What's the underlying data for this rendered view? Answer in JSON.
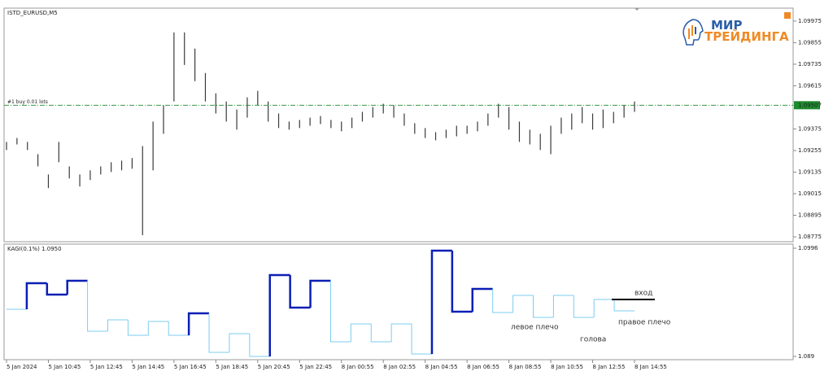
{
  "chart_data": [
    {
      "type": "ohlc",
      "title": "ISTD_EURUSD,M5",
      "categories": [
        "5 Jan 2024",
        null,
        null,
        null,
        "5 Jan 10:45",
        null,
        null,
        null,
        "5 Jan 12:45",
        null,
        null,
        null,
        "5 Jan 14:45",
        null,
        null,
        null,
        "5 Jan 16:45",
        null,
        null,
        null,
        "5 Jan 18:45",
        null,
        null,
        null,
        "5 Jan 20:45",
        null,
        null,
        null,
        "5 Jan 22:45",
        null,
        null,
        null,
        "8 Jan 00:55",
        null,
        null,
        null,
        "8 Jan 02:55",
        null,
        null,
        null,
        "8 Jan 04:55",
        null,
        null,
        null,
        "8 Jan 06:55",
        null,
        null,
        null,
        "8 Jan 08:55",
        null,
        null,
        null,
        "8 Jan 10:55",
        null,
        null,
        null,
        "8 Jan 12:55",
        null,
        null,
        null,
        "8 Jan 14:55"
      ],
      "high": [
        1.09303,
        1.09325,
        1.09303,
        1.09235,
        1.09122,
        1.09303,
        1.09167,
        1.09122,
        1.09145,
        1.09167,
        1.0919,
        1.09199,
        1.09213,
        1.0928,
        1.09416,
        1.09506,
        1.09912,
        1.09912,
        1.09822,
        1.09686,
        1.09573,
        1.09528,
        1.09483,
        1.09551,
        1.09587,
        1.09528,
        1.09461,
        1.09416,
        1.09425,
        1.09438,
        1.09447,
        1.09425,
        1.09416,
        1.09438,
        1.0947,
        1.09497,
        1.09515,
        1.09506,
        1.09461,
        1.09407,
        1.0938,
        1.09357,
        1.09371,
        1.09393,
        1.09393,
        1.09416,
        1.09461,
        1.09515,
        1.09497,
        1.09416,
        1.09371,
        1.09348,
        1.09393,
        1.09438,
        1.09461,
        1.09497,
        1.09461,
        1.09483,
        1.0947,
        1.09506,
        1.09528
      ],
      "low": [
        1.09258,
        1.09289,
        1.09258,
        1.09167,
        1.09046,
        1.0919,
        1.091,
        1.09055,
        1.09091,
        1.09122,
        1.09136,
        1.09145,
        1.09154,
        1.08784,
        1.09145,
        1.09348,
        1.09528,
        1.09731,
        1.09641,
        1.09528,
        1.09461,
        1.09416,
        1.09371,
        1.09438,
        1.09506,
        1.09416,
        1.0938,
        1.09371,
        1.0938,
        1.09393,
        1.09402,
        1.0938,
        1.09362,
        1.0938,
        1.09416,
        1.09438,
        1.09461,
        1.09438,
        1.09393,
        1.09348,
        1.09325,
        1.09312,
        1.09325,
        1.09334,
        1.09348,
        1.09362,
        1.09393,
        1.09438,
        1.09371,
        1.09303,
        1.09289,
        1.09258,
        1.09235,
        1.09348,
        1.09371,
        1.09407,
        1.09371,
        1.0938,
        1.09407,
        1.09438,
        1.0947
      ],
      "color": "#3a3a3a",
      "ylim": [
        1.08748,
        1.10047
      ],
      "yticks": [
        1.09975,
        1.09855,
        1.09735,
        1.09615,
        1.09375,
        1.09255,
        1.09135,
        1.09015,
        1.08895,
        1.08775
      ],
      "last_price": 1.09507,
      "last_price_color": "#1e8a2e",
      "order_label": "#1 buy 0.01 lots"
    },
    {
      "type": "kagi",
      "title": "KAGI(0.1%) 1.0950",
      "values": [
        1.09362,
        1.09617,
        1.09506,
        1.09641,
        1.09147,
        1.09259,
        1.09107,
        1.09243,
        1.09107,
        1.09322,
        1.0894,
        1.09123,
        1.089,
        1.09697,
        1.09378,
        1.09641,
        1.09043,
        1.09219,
        1.09043,
        1.09219,
        1.08924,
        1.09936,
        1.09338,
        1.09562,
        1.0933,
        1.09498,
        1.09283,
        1.09498,
        1.09283,
        1.09458,
        1.09346
      ],
      "yang_color": "#0b1fb5",
      "yin_color": "#7ccdf0",
      "ylim": [
        1.08868,
        1.1
      ],
      "yticks": [
        1.0996,
        1.089
      ],
      "entry_level": 1.09458,
      "annotations": [
        "вход",
        "левое плечо",
        "голова",
        "правое плечо"
      ]
    }
  ],
  "logo": {
    "line1": "МИР",
    "line2": "ТРЕЙДИНГА"
  }
}
